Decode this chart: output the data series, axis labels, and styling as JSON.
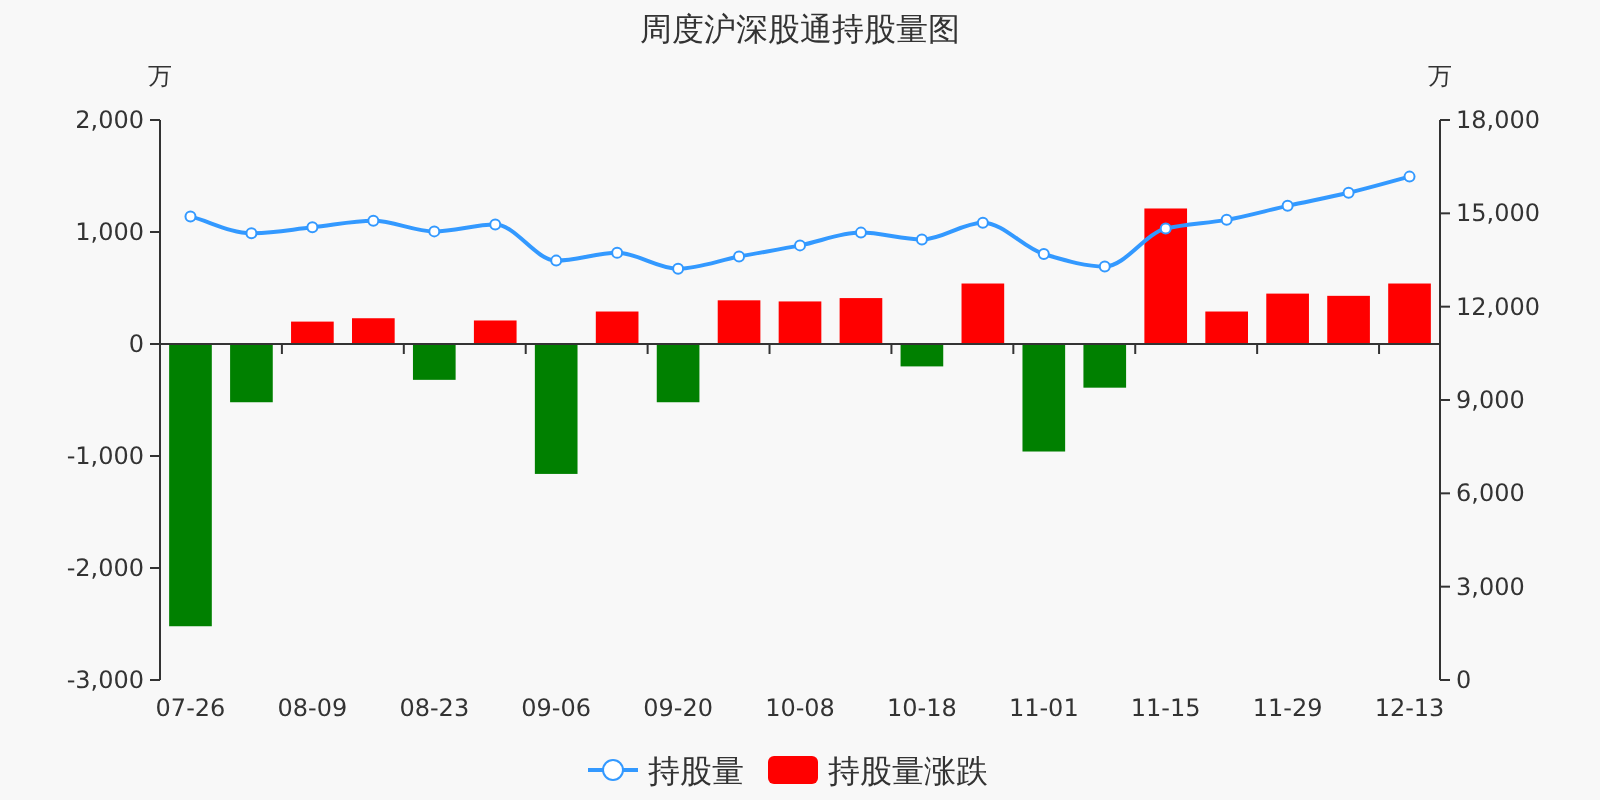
{
  "chart_data": {
    "type": "bar",
    "title": "周度沪深股通持股量图",
    "ylabel": "万",
    "y2label": "万",
    "categories": [
      "07-26",
      null,
      "08-09",
      null,
      "08-23",
      null,
      "09-06",
      null,
      "09-20",
      null,
      "10-08",
      null,
      "10-18",
      null,
      "11-01",
      null,
      "11-15",
      null,
      "11-29",
      null,
      "12-13"
    ],
    "series": [
      {
        "name": "持股量",
        "type": "line",
        "axis": "y2",
        "color": "#3399ff",
        "values": [
          14900,
          14360,
          14550,
          14760,
          14420,
          14640,
          13480,
          13730,
          13220,
          13610,
          13970,
          14380,
          14160,
          14700,
          13690,
          13290,
          14510,
          14790,
          15240,
          15660,
          16180
        ]
      },
      {
        "name": "持股量涨跌",
        "color": "#ff0000",
        "colors": [
          "#008000",
          "#008000",
          "#ff0000",
          "#ff0000",
          "#008000",
          "#ff0000",
          "#008000",
          "#ff0000",
          "#008000",
          "#ff0000",
          "#ff0000",
          "#ff0000",
          "#008000",
          "#ff0000",
          "#008000",
          "#008000",
          "#ff0000",
          "#ff0000",
          "#ff0000",
          "#ff0000",
          "#ff0000"
        ],
        "values": [
          -2520,
          -520,
          200,
          230,
          -320,
          210,
          -1160,
          290,
          -520,
          390,
          380,
          410,
          -200,
          540,
          -960,
          -390,
          1210,
          290,
          450,
          430,
          540
        ]
      }
    ],
    "ylim": [
      -3000,
      2000
    ],
    "yticks": [
      {
        "value": -3000,
        "label": "-3,000"
      },
      {
        "value": -2000,
        "label": "-2,000"
      },
      {
        "value": -1000,
        "label": "-1,000"
      },
      0,
      {
        "value": 1000,
        "label": "1,000"
      },
      {
        "value": 2000,
        "label": "2,000"
      }
    ],
    "y2lim": [
      0,
      18000
    ],
    "y2ticks": [
      0,
      {
        "value": 3000,
        "label": "3,000"
      },
      {
        "value": 6000,
        "label": "6,000"
      },
      {
        "value": 9000,
        "label": "9,000"
      },
      {
        "value": 12000,
        "label": "12,000"
      },
      {
        "value": 15000,
        "label": "15,000"
      },
      {
        "value": 18000,
        "label": "18,000"
      }
    ],
    "marker": "circle",
    "legend": "bottom"
  }
}
